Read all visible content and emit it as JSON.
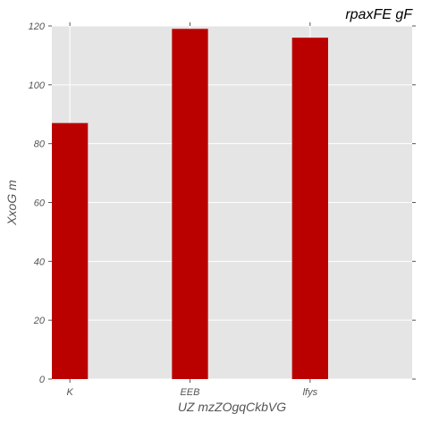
{
  "chart_data": {
    "type": "bar",
    "title": "rpaxFE gF",
    "xlabel": "UZ mzZOgqCkbVG",
    "ylabel": "XxoG m",
    "categories": [
      "K",
      "EEB",
      "lfys"
    ],
    "values": [
      87,
      119,
      116
    ],
    "ylim": [
      0,
      120
    ],
    "yticks": [
      0,
      20,
      40,
      60,
      80,
      100,
      120
    ],
    "grid": true,
    "bar_color": "#bb0000",
    "plot_background": "#e5e5e5",
    "grid_color": "#ffffff"
  }
}
